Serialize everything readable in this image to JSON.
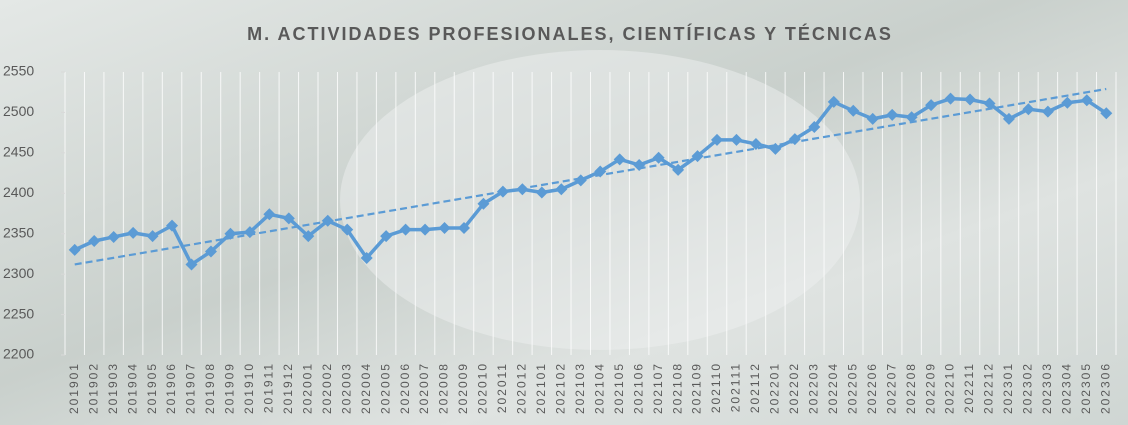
{
  "chart_data": {
    "type": "line",
    "title": "M. ACTIVIDADES PROFESIONALES, CIENTÍFICAS Y TÉCNICAS",
    "categories": [
      "201901",
      "201902",
      "201903",
      "201904",
      "201905",
      "201906",
      "201907",
      "201908",
      "201909",
      "201910",
      "201911",
      "201912",
      "202001",
      "202002",
      "202003",
      "202004",
      "202005",
      "202006",
      "202007",
      "202008",
      "202009",
      "202010",
      "202011",
      "202012",
      "202101",
      "202102",
      "202103",
      "202104",
      "202105",
      "202106",
      "202107",
      "202108",
      "202109",
      "202110",
      "202111",
      "202112",
      "202201",
      "202202",
      "202203",
      "202204",
      "202205",
      "202206",
      "202207",
      "202208",
      "202209",
      "202210",
      "202211",
      "202212",
      "202301",
      "202302",
      "202303",
      "202304",
      "202305",
      "202306"
    ],
    "series": [
      {
        "color": "#5b9bd5",
        "values": [
          2330,
          2341,
          2346,
          2351,
          2347,
          2360,
          2312,
          2328,
          2350,
          2352,
          2374,
          2369,
          2347,
          2366,
          2355,
          2320,
          2347,
          2355,
          2355,
          2357,
          2357,
          2387,
          2402,
          2405,
          2401,
          2405,
          2416,
          2427,
          2442,
          2435,
          2444,
          2429,
          2446,
          2466,
          2466,
          2461,
          2455,
          2467,
          2482,
          2513,
          2502,
          2492,
          2497,
          2494,
          2509,
          2517,
          2516,
          2511,
          2492,
          2504,
          2501,
          2512,
          2515,
          2499
        ]
      }
    ],
    "trend": {
      "color": "#5b9bd5",
      "values": [
        2312,
        2529
      ]
    },
    "ylim": [
      2200,
      2550
    ],
    "yticks": [
      2200,
      2250,
      2300,
      2350,
      2400,
      2450,
      2500,
      2550
    ]
  }
}
